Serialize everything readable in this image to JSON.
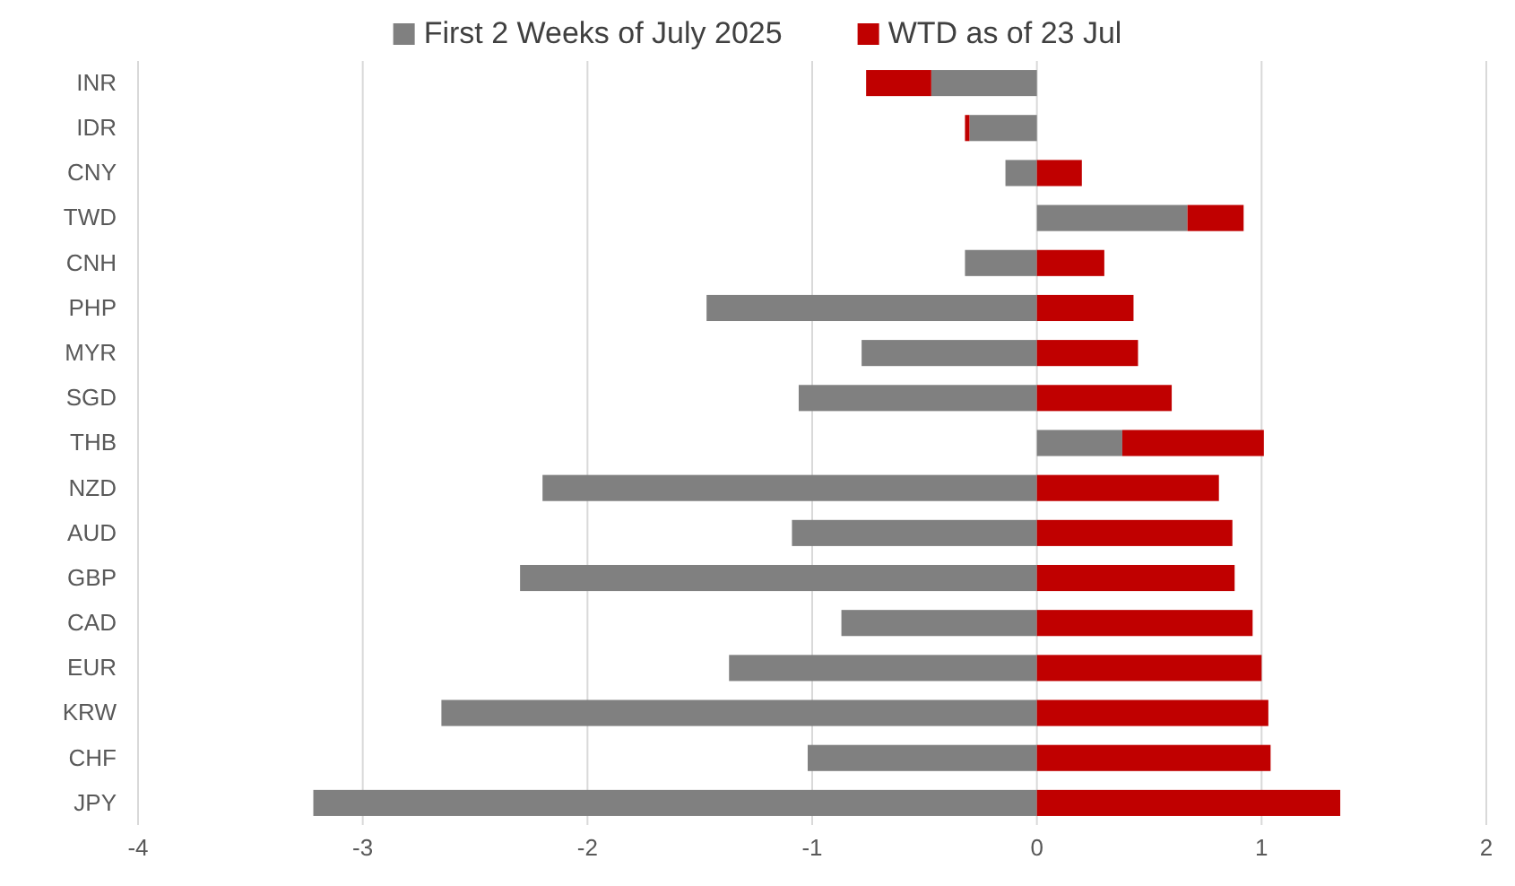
{
  "chart_data": {
    "type": "bar",
    "orientation": "horizontal",
    "stacked": true,
    "categories": [
      "INR",
      "IDR",
      "CNY",
      "TWD",
      "CNH",
      "PHP",
      "MYR",
      "SGD",
      "THB",
      "NZD",
      "AUD",
      "GBP",
      "CAD",
      "EUR",
      "KRW",
      "CHF",
      "JPY"
    ],
    "series": [
      {
        "name": "First 2 Weeks of July 2025",
        "color": "#808080",
        "values": [
          -0.47,
          -0.3,
          -0.14,
          0.67,
          -0.32,
          -1.47,
          -0.78,
          -1.06,
          0.38,
          -2.2,
          -1.09,
          -2.3,
          -0.87,
          -1.37,
          -2.65,
          -1.02,
          -3.22
        ]
      },
      {
        "name": "WTD as of 23 Jul",
        "color": "#c00000",
        "values": [
          -0.29,
          -0.02,
          0.2,
          0.25,
          0.3,
          0.43,
          0.45,
          0.6,
          0.63,
          0.81,
          0.87,
          0.88,
          0.96,
          1.0,
          1.03,
          1.04,
          1.35
        ]
      }
    ],
    "xlim": [
      -4,
      2
    ],
    "xticks": [
      -4,
      -3,
      -2,
      -1,
      0,
      1,
      2
    ],
    "grid": "x",
    "legend": "top"
  }
}
